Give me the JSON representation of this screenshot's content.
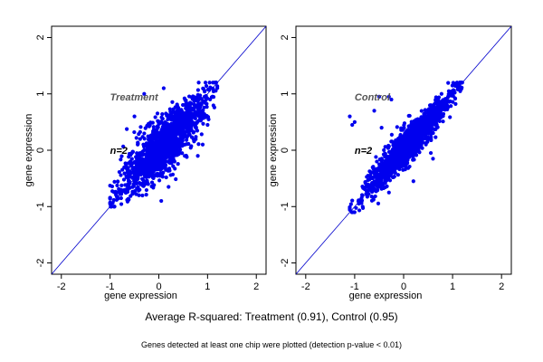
{
  "captions": {
    "summary": "Average R-squared: Treatment (0.91), Control (0.95)",
    "footnote": "Genes detected at least one chip were plotted (detection p-value < 0.01)"
  },
  "colors": {
    "points": "#0000ee",
    "line": "#0000cc",
    "annotation": "#555555"
  },
  "chart_data": [
    {
      "type": "scatter",
      "xlabel": "gene expression",
      "ylabel": "gene expression",
      "xlim": [
        -2.2,
        2.2
      ],
      "ylim": [
        -2.2,
        2.2
      ],
      "xticks": [
        "-2",
        "-1",
        "0",
        "1",
        "2"
      ],
      "yticks": [
        "-2",
        "-1",
        "0",
        "1",
        "2"
      ],
      "reference_line": "y = x",
      "grid": false,
      "annotations": [
        {
          "text": "Treatment",
          "x": -1.0,
          "y": 0.95
        },
        {
          "text": "n=2",
          "x": -1.0,
          "y": 0.0
        }
      ],
      "cloud": {
        "x_range": [
          -1.0,
          1.2
        ],
        "y_range": [
          -1.0,
          1.2
        ],
        "r_squared": 0.91
      },
      "outliers": [
        {
          "x": -0.3,
          "y": 1.0
        },
        {
          "x": 0.1,
          "y": 1.1
        },
        {
          "x": 0.8,
          "y": -0.1
        },
        {
          "x": 0.9,
          "y": 0.1
        },
        {
          "x": 0.05,
          "y": -0.9
        },
        {
          "x": -0.5,
          "y": 0.6
        },
        {
          "x": 0.2,
          "y": -0.65
        },
        {
          "x": 1.0,
          "y": 0.45
        }
      ]
    },
    {
      "type": "scatter",
      "xlabel": "gene expression",
      "ylabel": "gene expression",
      "xlim": [
        -2.2,
        2.2
      ],
      "ylim": [
        -2.2,
        2.2
      ],
      "xticks": [
        "-2",
        "-1",
        "0",
        "1",
        "2"
      ],
      "yticks": [
        "-2",
        "-1",
        "0",
        "1",
        "2"
      ],
      "reference_line": "y = x",
      "grid": false,
      "annotations": [
        {
          "text": "Control",
          "x": -1.0,
          "y": 0.95
        },
        {
          "text": "n=2",
          "x": -1.0,
          "y": 0.0
        }
      ],
      "cloud": {
        "x_range": [
          -1.1,
          1.2
        ],
        "y_range": [
          -1.1,
          1.2
        ],
        "r_squared": 0.95
      },
      "outliers": [
        {
          "x": -1.1,
          "y": 0.6
        },
        {
          "x": -1.05,
          "y": 0.45
        },
        {
          "x": -1.0,
          "y": 0.5
        },
        {
          "x": -0.5,
          "y": 0.95
        },
        {
          "x": -0.3,
          "y": 0.95
        },
        {
          "x": -0.25,
          "y": 0.9
        },
        {
          "x": -0.6,
          "y": 0.7
        },
        {
          "x": 0.6,
          "y": -0.15
        },
        {
          "x": -0.3,
          "y": -0.75
        },
        {
          "x": 0.2,
          "y": -0.55
        },
        {
          "x": -0.45,
          "y": 0.4
        }
      ]
    }
  ]
}
